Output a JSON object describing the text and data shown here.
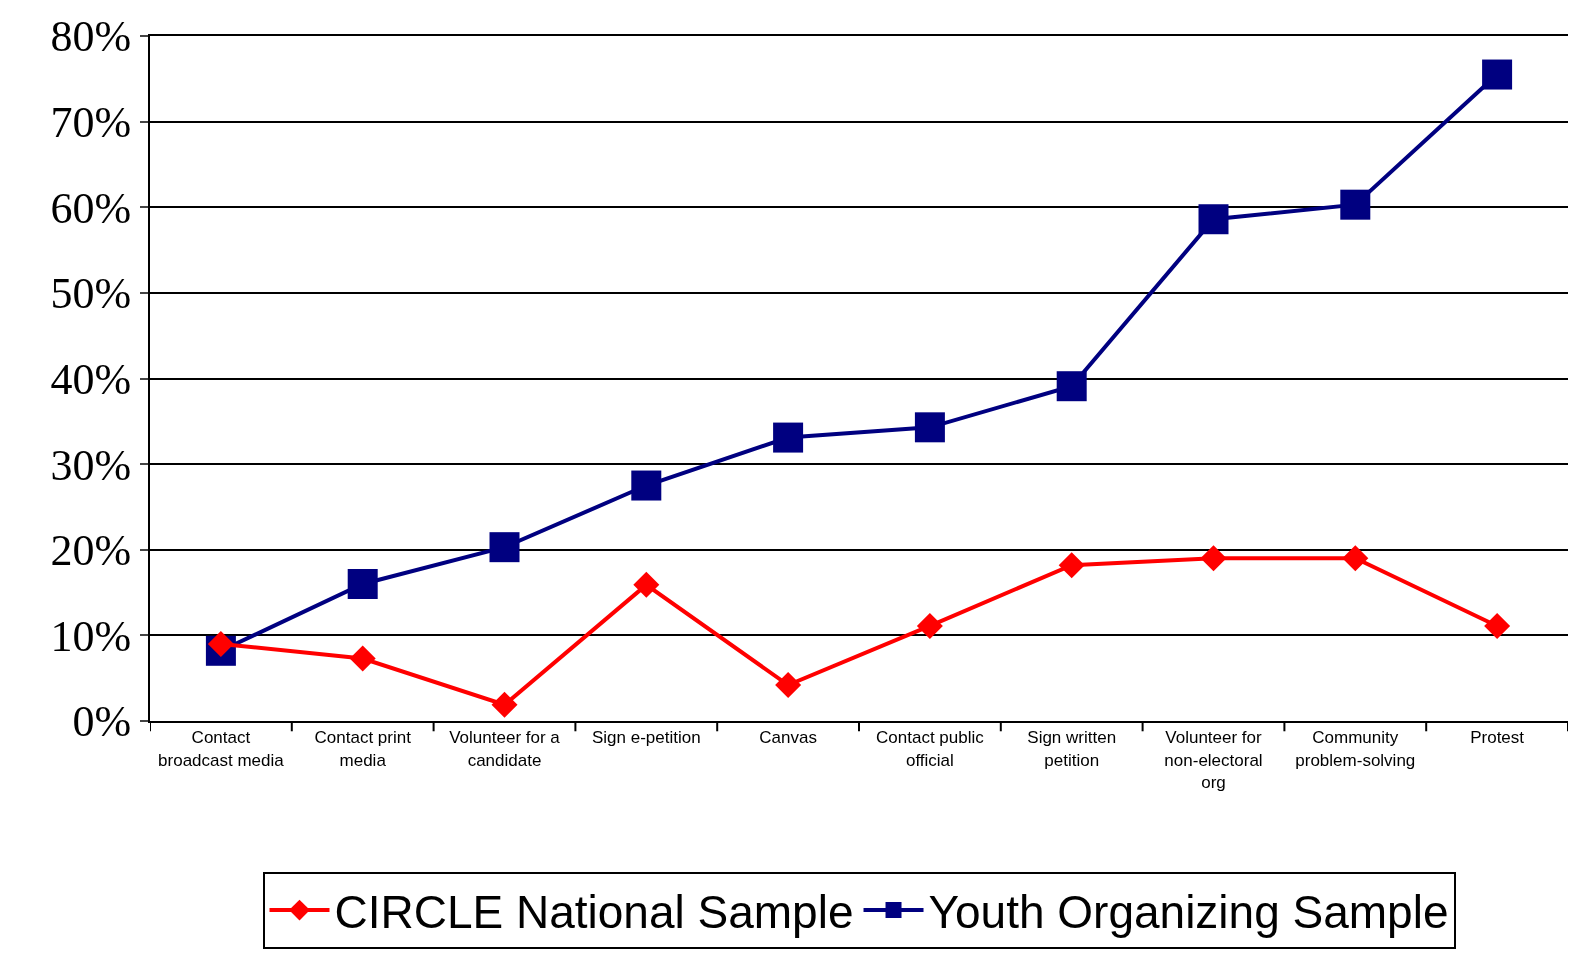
{
  "chart_data": {
    "type": "line",
    "categories": [
      "Contact broadcast media",
      "Contact print media",
      "Volunteer for a candidate",
      "Sign e-petition",
      "Canvas",
      "Contact public official",
      "Sign written petition",
      "Volunteer for non-electoral org",
      "Community problem-solving",
      "Protest"
    ],
    "series": [
      {
        "name": "CIRCLE National Sample",
        "color": "#ff0000",
        "marker": "diamond",
        "values": [
          9,
          7.3,
          1.9,
          15.9,
          4.2,
          11.1,
          18.2,
          19,
          19,
          11.1
        ]
      },
      {
        "name": "Youth Organizing Sample",
        "color": "#000080",
        "marker": "square",
        "values": [
          8.2,
          16,
          20.3,
          27.5,
          33.1,
          34.3,
          39.1,
          58.6,
          60.3,
          75.5
        ]
      }
    ],
    "ylim": [
      0,
      80
    ],
    "yticks": [
      {
        "value": 0,
        "label": "0%"
      },
      {
        "value": 10,
        "label": "10%"
      },
      {
        "value": 20,
        "label": "20%"
      },
      {
        "value": 30,
        "label": "30%"
      },
      {
        "value": 40,
        "label": "40%"
      },
      {
        "value": 50,
        "label": "50%"
      },
      {
        "value": 60,
        "label": "60%"
      },
      {
        "value": 70,
        "label": "70%"
      },
      {
        "value": 80,
        "label": "80%"
      }
    ],
    "grid": "y",
    "legend": "bottom",
    "line_style": "solid"
  }
}
